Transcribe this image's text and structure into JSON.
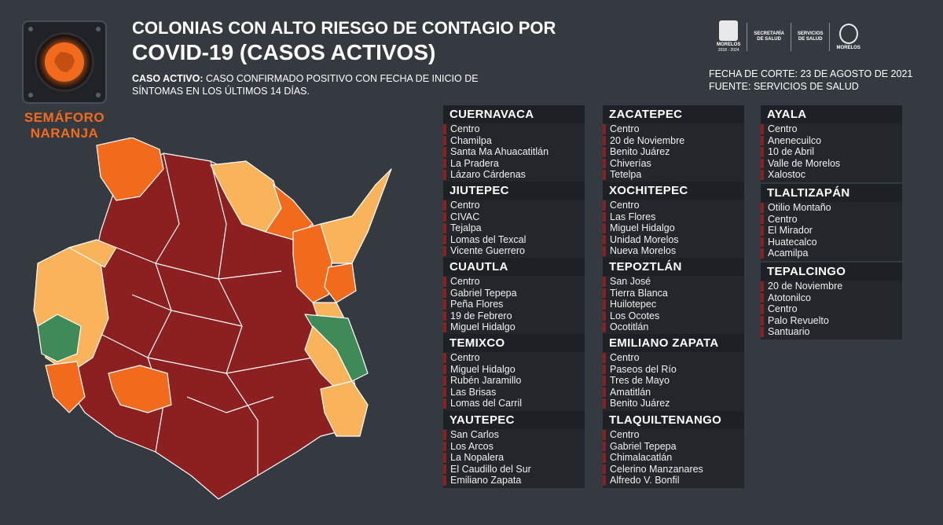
{
  "badge": {
    "label_line1": "SEMÁFORO",
    "label_line2": "NARANJA",
    "light_color": "#f26b1d"
  },
  "header": {
    "title_line1": "COLONIAS CON ALTO RIESGO DE CONTAGIO POR",
    "title_line2": "COVID-19 (CASOS ACTIVOS)",
    "definition_term": "CASO ACTIVO:",
    "definition_text": " CASO CONFIRMADO POSITIVO CON FECHA DE INICIO DE SÍNTOMAS EN LOS ÚLTIMOS 14 DÍAS."
  },
  "logos": {
    "morelos_label": "MORELOS",
    "morelos_years": "2018 - 2024",
    "secretaria_line1": "SECRETARÍA",
    "secretaria_line2": "DE SALUD",
    "servicios_line1": "SERVICIOS",
    "servicios_line2": "DE SALUD",
    "morelos2_label": "MORELOS"
  },
  "meta": {
    "cutoff": "FECHA DE CORTE: 23 DE AGOSTO DE 2021",
    "source": "FUENTE: SERVICIOS DE SALUD"
  },
  "colors": {
    "background": "#353a40",
    "red": "#8c2020",
    "orange": "#f26b1d",
    "yellow": "#f9b35a",
    "green": "#3f8a57"
  },
  "municipalities": [
    {
      "name": "CUERNAVACA",
      "colonias": [
        "Centro",
        "Chamilpa",
        "Santa Ma Ahuacatitlán",
        "La Pradera",
        "Lázaro Cárdenas"
      ]
    },
    {
      "name": "JIUTEPEC",
      "colonias": [
        "Centro",
        "CIVAC",
        "Tejalpa",
        "Lomas del Texcal",
        "Vicente Guerrero"
      ]
    },
    {
      "name": "CUAUTLA",
      "colonias": [
        "Centro",
        "Gabriel Tepepa",
        "Peña Flores",
        "19 de Febrero",
        "Miguel Hidalgo"
      ]
    },
    {
      "name": "TEMIXCO",
      "colonias": [
        "Centro",
        "Miguel Hidalgo",
        "Rubén Jaramillo",
        "Las Brisas",
        "Lomas del Carril"
      ]
    },
    {
      "name": "YAUTEPEC",
      "colonias": [
        "San Carlos",
        "Los Arcos",
        "La Nopalera",
        "El Caudillo del Sur",
        "Emiliano Zapata"
      ]
    },
    {
      "name": "ZACATEPEC",
      "colonias": [
        "Centro",
        "20 de Noviembre",
        "Benito Juárez",
        "Chiverías",
        "Tetelpa"
      ]
    },
    {
      "name": "XOCHITEPEC",
      "colonias": [
        "Centro",
        "Las Flores",
        "Miguel Hidalgo",
        "Unidad Morelos",
        "Nueva Morelos"
      ]
    },
    {
      "name": "TEPOZTLÁN",
      "colonias": [
        "San José",
        "Tierra Blanca",
        "Huilotepec",
        "Los Ocotes",
        "Ocotitlán"
      ]
    },
    {
      "name": "EMILIANO ZAPATA",
      "colonias": [
        "Centro",
        "Paseos del Río",
        "Tres de Mayo",
        "Amatitlán",
        "Benito Juárez"
      ]
    },
    {
      "name": "TLAQUILTENANGO",
      "colonias": [
        "Centro",
        "Gabriel Tepepa",
        "Chimalacatlán",
        "Celerino Manzanares",
        "Alfredo V. Bonfil"
      ]
    },
    {
      "name": "AYALA",
      "colonias": [
        "Centro",
        "Anenecuilco",
        "10 de Abril",
        "Valle de Morelos",
        "Xalostoc"
      ]
    },
    {
      "name": "TLALTIZAPÁN",
      "colonias": [
        "Otilio Montaño",
        "Centro",
        "El Mirador",
        "Huatecalco",
        "Acamilpa"
      ]
    },
    {
      "name": "TEPALCINGO",
      "colonias": [
        "20 de Noviembre",
        "Atotonilco",
        "Centro",
        "Palo Revuelto",
        "Santuario"
      ]
    }
  ]
}
